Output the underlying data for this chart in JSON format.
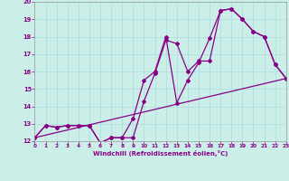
{
  "xlabel": "Windchill (Refroidissement éolien,°C)",
  "bg_color": "#cceee8",
  "line_color": "#880088",
  "grid_color": "#aadddd",
  "tick_color": "#880088",
  "xlim": [
    0,
    23
  ],
  "ylim": [
    12,
    20
  ],
  "xticks": [
    0,
    1,
    2,
    3,
    4,
    5,
    6,
    7,
    8,
    9,
    10,
    11,
    12,
    13,
    14,
    15,
    16,
    17,
    18,
    19,
    20,
    21,
    22,
    23
  ],
  "yticks": [
    12,
    13,
    14,
    15,
    16,
    17,
    18,
    19,
    20
  ],
  "line1_x": [
    0,
    1,
    2,
    3,
    4,
    5,
    6,
    7,
    8,
    9,
    10,
    11,
    12,
    13,
    14,
    15,
    16,
    17,
    18,
    19,
    20,
    21,
    22,
    23
  ],
  "line1_y": [
    12.2,
    12.9,
    12.8,
    12.9,
    12.9,
    12.9,
    11.9,
    12.2,
    12.2,
    12.2,
    14.3,
    15.9,
    17.8,
    17.6,
    16.0,
    16.6,
    16.6,
    19.5,
    19.6,
    19.0,
    18.3,
    18.0,
    16.4,
    15.6
  ],
  "line2_x": [
    0,
    1,
    2,
    3,
    4,
    5,
    6,
    7,
    8,
    9,
    10,
    11,
    12,
    13,
    14,
    15,
    16,
    17,
    18,
    19,
    20,
    21,
    22,
    23
  ],
  "line2_y": [
    12.2,
    12.9,
    12.8,
    12.9,
    12.9,
    12.9,
    11.9,
    12.2,
    12.2,
    13.3,
    15.5,
    16.0,
    18.0,
    14.2,
    15.5,
    16.5,
    17.9,
    19.5,
    19.6,
    19.0,
    18.3,
    18.0,
    16.4,
    15.6
  ],
  "line3_x": [
    0,
    23
  ],
  "line3_y": [
    12.2,
    15.6
  ]
}
